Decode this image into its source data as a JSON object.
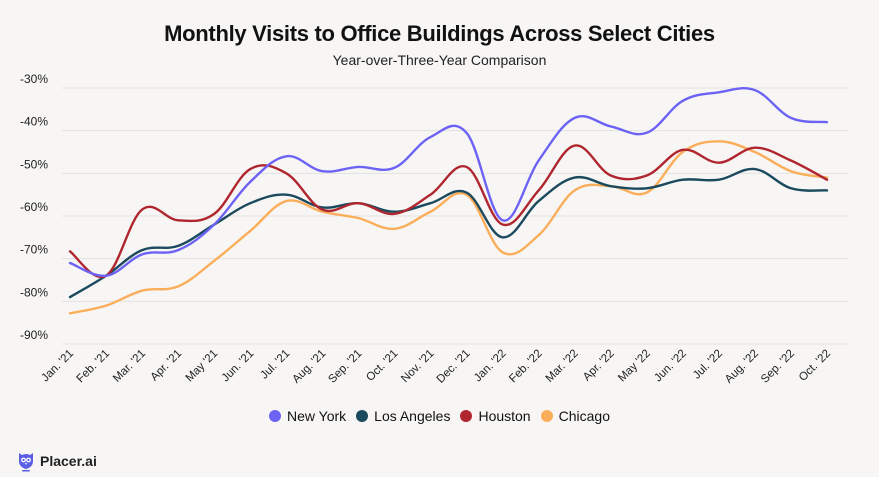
{
  "brand": {
    "name": "Placer.ai",
    "icon": "owl-logo-icon",
    "color": "#5b5fe6"
  },
  "chart_data": {
    "type": "line",
    "title": "Monthly Visits to Office Buildings Across Select Cities",
    "subtitle": "Year-over-Three-Year Comparison",
    "xlabel": "",
    "ylabel": "",
    "ylim": [
      -90,
      -30
    ],
    "yticks": [
      -30,
      -40,
      -50,
      -60,
      -70,
      -80,
      -90
    ],
    "ytick_labels": [
      "-30%",
      "-40%",
      "-50%",
      "-60%",
      "-70%",
      "-80%",
      "-90%"
    ],
    "grid": true,
    "legend_position": "bottom",
    "categories": [
      "Jan. '21",
      "Feb. '21",
      "Mar. '21",
      "Apr. '21",
      "May '21",
      "Jun. '21",
      "Jul. '21",
      "Aug. '21",
      "Sep. '21",
      "Oct. '21",
      "Nov. '21",
      "Dec. '21",
      "Jan. '22",
      "Feb. '22",
      "Mar. '22",
      "Apr. '22",
      "May '22",
      "Jun. '22",
      "Jul. '22",
      "Aug. '22",
      "Sep. '22",
      "Oct. '22"
    ],
    "series": [
      {
        "name": "New York",
        "color": "#6c63f5",
        "values": [
          -71,
          -74,
          -69,
          -68,
          -62,
          -52,
          -46,
          -49.5,
          -48.5,
          -48.7,
          -41.5,
          -40.5,
          -61,
          -47,
          -37,
          -39,
          -40.5,
          -33,
          -31,
          -30.5,
          -37,
          -38
        ]
      },
      {
        "name": "Los Angeles",
        "color": "#1b4a5e",
        "values": [
          -79,
          -74,
          -68,
          -67,
          -62,
          -57,
          -55,
          -58,
          -57,
          -59,
          -57,
          -54.5,
          -65,
          -56.5,
          -51,
          -53,
          -53.5,
          -51.5,
          -51.5,
          -49,
          -53.5,
          -54
        ]
      },
      {
        "name": "Houston",
        "color": "#b0262e",
        "values": [
          -68.3,
          -74,
          -58.5,
          -61,
          -59.5,
          -49,
          -50,
          -58.5,
          -57,
          -59.5,
          -55,
          -48.5,
          -62,
          -54,
          -43.5,
          -50.5,
          -50.5,
          -44.5,
          -47.5,
          -44,
          -47,
          -51.5
        ]
      },
      {
        "name": "Chicago",
        "color": "#fbae5a",
        "values": [
          -82.8,
          -81,
          -77.5,
          -76.5,
          -70.5,
          -63.5,
          -56.5,
          -59,
          -60.5,
          -63,
          -59,
          -55,
          -68.5,
          -64.5,
          -54,
          -53,
          -54.5,
          -45,
          -42.5,
          -45,
          -49.5,
          -51
        ]
      }
    ]
  }
}
